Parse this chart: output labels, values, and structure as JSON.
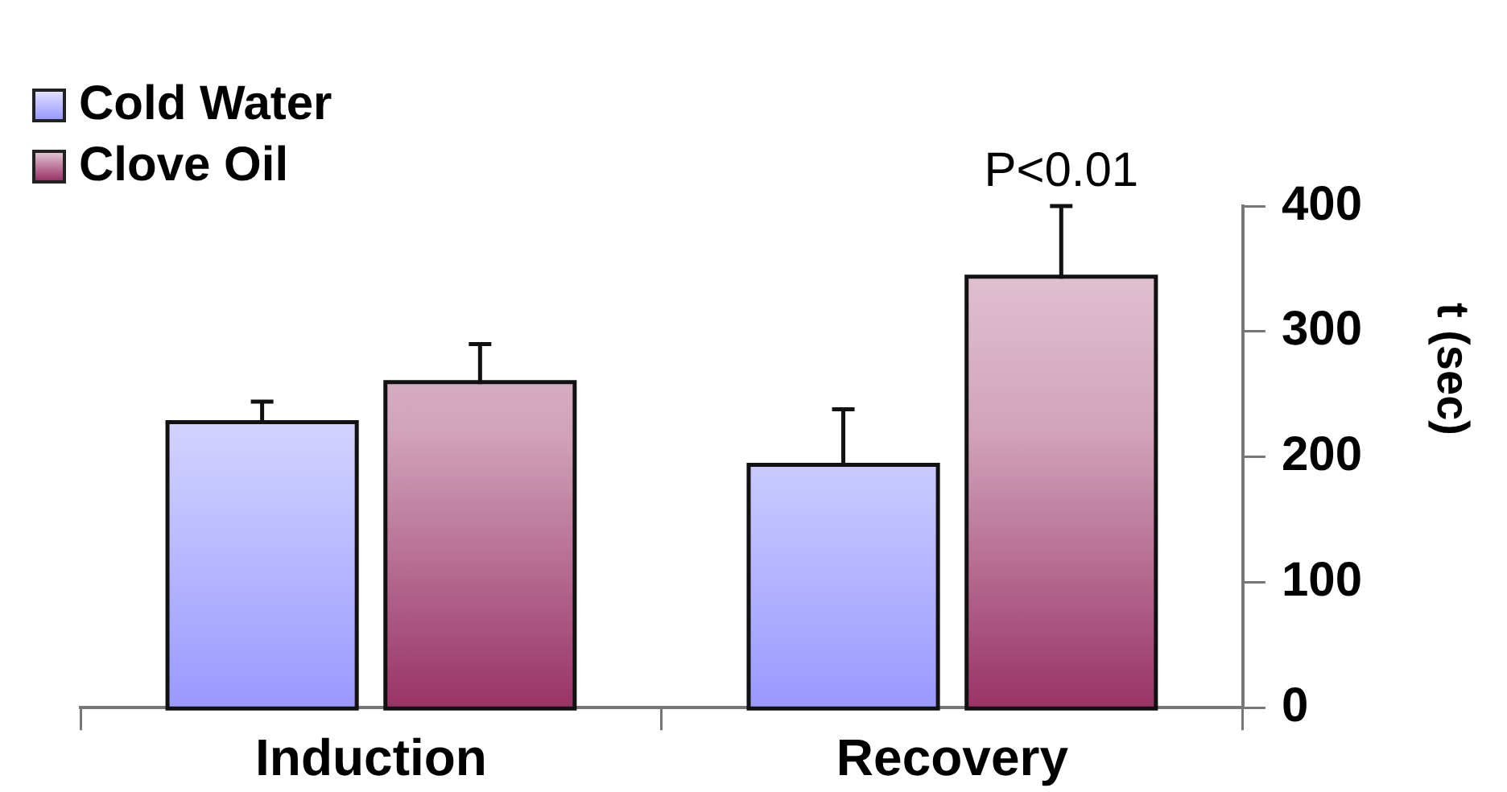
{
  "chart_data": {
    "type": "bar",
    "ylabel": "t (sec)",
    "categories": [
      "Induction",
      "Recovery"
    ],
    "series": [
      {
        "name": "Cold Water",
        "color": "#9999ff",
        "values": [
          226,
          192
        ],
        "errors": [
          [
            226,
            244
          ],
          [
            192,
            238
          ]
        ]
      },
      {
        "name": "Clove Oil",
        "color": "#993366",
        "values": [
          258,
          342
        ],
        "errors": [
          [
            258,
            290
          ],
          [
            342,
            400
          ]
        ]
      }
    ],
    "ylim": [
      0,
      400
    ],
    "yticks": [
      0,
      100,
      200,
      300,
      400
    ],
    "grid": false,
    "legend": "top left",
    "annotations": [
      "P<0.01"
    ]
  }
}
